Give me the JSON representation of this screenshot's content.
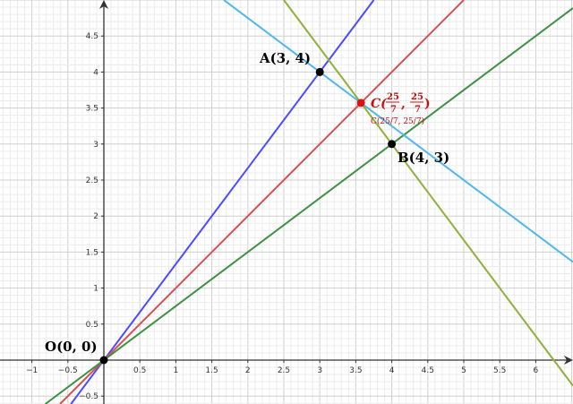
{
  "chart_data": {
    "type": "line",
    "xlim": [
      -1.45,
      6.52
    ],
    "ylim": [
      -0.61,
      5.0
    ],
    "grid": true,
    "x_ticks": [
      "−1",
      "−0.5",
      "0.5",
      "1",
      "1.5",
      "2",
      "2.5",
      "3",
      "3.5",
      "4",
      "4.5",
      "5",
      "5.5",
      "6"
    ],
    "x_tick_values": [
      -1,
      -0.5,
      0.5,
      1,
      1.5,
      2,
      2.5,
      3,
      3.5,
      4,
      4.5,
      5,
      5.5,
      6
    ],
    "y_ticks": [
      "−0.5",
      "0.5",
      "1",
      "1.5",
      "2",
      "2.5",
      "3",
      "3.5",
      "4",
      "4.5"
    ],
    "y_tick_values": [
      -0.5,
      0.5,
      1,
      1.5,
      2,
      2.5,
      3,
      3.5,
      4,
      4.5
    ],
    "lines": [
      {
        "slope": 1.3333,
        "intercept": 0,
        "color": "#4b4bff"
      },
      {
        "slope": 1,
        "intercept": 0,
        "color": "#db5050"
      },
      {
        "slope": 0.75,
        "intercept": 0,
        "color": "#3d9140"
      },
      {
        "slope": -0.75,
        "intercept": 6.25,
        "color": "#4db8f0"
      },
      {
        "slope": -1.3333,
        "intercept": 8.3333,
        "color": "#8fb03a"
      }
    ],
    "points": [
      {
        "name": "O",
        "x": 0,
        "y": 0,
        "label": "O(0, 0)",
        "color": "#000000",
        "label_color": "#000000"
      },
      {
        "name": "A",
        "x": 3,
        "y": 4,
        "label": "A(3, 4)",
        "color": "#000000",
        "label_color": "#000000"
      },
      {
        "name": "B",
        "x": 4,
        "y": 3,
        "label": "B(4, 3)",
        "color": "#000000",
        "label_color": "#000000"
      },
      {
        "name": "C",
        "x": 3.5714,
        "y": 3.5714,
        "label": "C(25/7, 25/7)",
        "color": "#e01010",
        "label_color": "#c41010"
      }
    ]
  },
  "labels": {
    "O": "O(0, 0)",
    "A": "A(3, 4)",
    "B": "B(4, 3)",
    "C_prefix": "C(",
    "C_num1": "25",
    "C_den1": "7",
    "C_sep": ",",
    "C_num2": "25",
    "C_den2": "7",
    "C_suffix": ")"
  }
}
